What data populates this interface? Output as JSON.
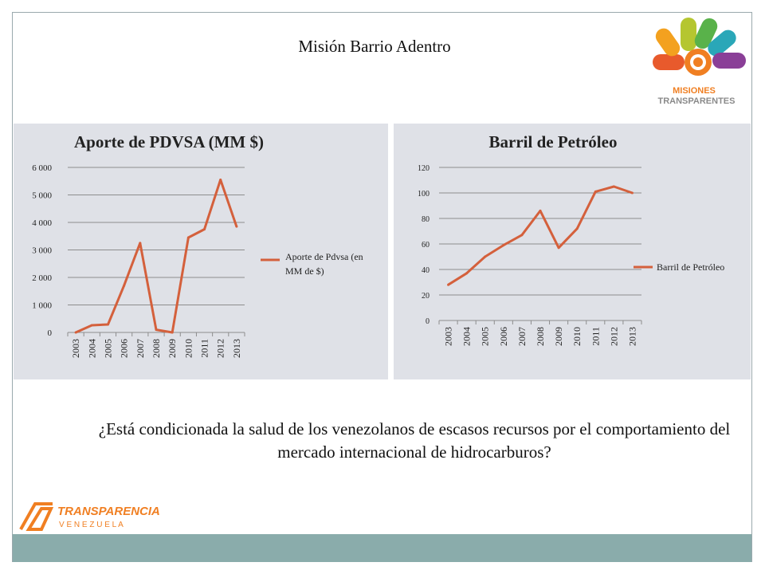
{
  "slide": {
    "title": "Misión Barrio Adentro",
    "question": "¿Está condicionada la salud de los venezolanos de escasos recursos por el comportamiento del mercado internacional de hidrocarburos?"
  },
  "logos": {
    "misiones_line1": "MISIONES",
    "misiones_line2": "TRANSPARENTES",
    "transparencia_line1": "TRANSPARENCIA",
    "transparencia_line2": "V E N E Z U E L A"
  },
  "colors": {
    "line": "#d4603c",
    "panel_bg": "#dfe1e7",
    "bottom_bar": "#8aacab"
  },
  "chart_data": [
    {
      "type": "line",
      "title": "Aporte de PDVSA (MM $)",
      "categories": [
        "2003",
        "2004",
        "2005",
        "2006",
        "2007",
        "2008",
        "2009",
        "2010",
        "2011",
        "2012",
        "2013"
      ],
      "series": [
        {
          "name": "Aporte de Pdvsa (en MM de $)",
          "values": [
            0,
            260,
            290,
            1700,
            3250,
            100,
            0,
            3450,
            3750,
            5550,
            3850
          ]
        }
      ],
      "ylim": [
        0,
        6000
      ],
      "yticks": [
        0,
        1000,
        2000,
        3000,
        4000,
        5000,
        6000
      ],
      "ytick_labels": [
        "0",
        "1 000",
        "2 000",
        "3 000",
        "4 000",
        "5 000",
        "6 000"
      ],
      "grid": true,
      "legend": "right"
    },
    {
      "type": "line",
      "title": "Barril de Petróleo",
      "categories": [
        "2003",
        "2004",
        "2005",
        "2006",
        "2007",
        "2008",
        "2009",
        "2010",
        "2011",
        "2012",
        "2013"
      ],
      "series": [
        {
          "name": "Barril de Petróleo",
          "values": [
            28,
            37,
            50,
            59,
            67,
            86,
            57,
            72,
            101,
            105,
            100
          ]
        }
      ],
      "ylim": [
        0,
        120
      ],
      "yticks": [
        0,
        20,
        40,
        60,
        80,
        100,
        120
      ],
      "ytick_labels": [
        "0",
        "20",
        "40",
        "60",
        "80",
        "100",
        "120"
      ],
      "grid": true,
      "legend": "right"
    }
  ]
}
